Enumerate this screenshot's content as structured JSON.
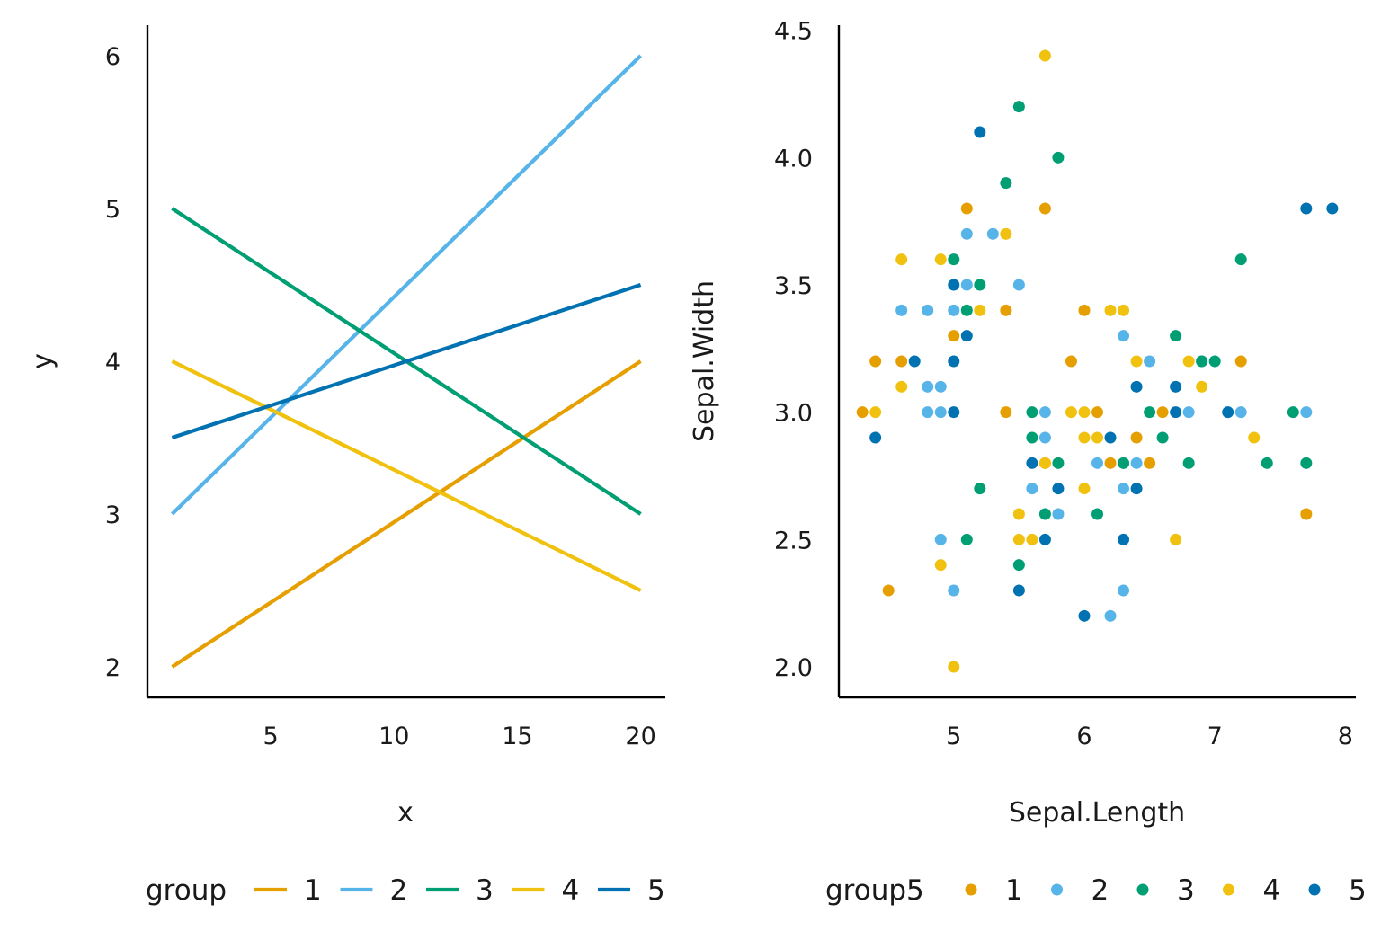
{
  "chart_data": [
    {
      "type": "line",
      "xlabel": "x",
      "ylabel": "y",
      "xlim": [
        0.0,
        21.0
      ],
      "ylim": [
        1.8,
        6.2
      ],
      "xticks": [
        5,
        10,
        15,
        20
      ],
      "yticks": [
        2,
        3,
        4,
        5,
        6
      ],
      "grid": false,
      "legend": {
        "title": "group",
        "position": "bottom",
        "entries": [
          "1",
          "2",
          "3",
          "4",
          "5"
        ]
      },
      "series": [
        {
          "name": "1",
          "color": "#E69F00",
          "x": [
            1,
            20
          ],
          "y": [
            2.0,
            4.0
          ]
        },
        {
          "name": "2",
          "color": "#56B4E9",
          "x": [
            1,
            20
          ],
          "y": [
            3.0,
            6.0
          ]
        },
        {
          "name": "3",
          "color": "#009E73",
          "x": [
            1,
            20
          ],
          "y": [
            5.0,
            3.0
          ]
        },
        {
          "name": "4",
          "color": "#F0C20F",
          "x": [
            1,
            20
          ],
          "y": [
            4.0,
            2.5
          ]
        },
        {
          "name": "5",
          "color": "#0072B2",
          "x": [
            1,
            20
          ],
          "y": [
            3.5,
            4.5
          ]
        }
      ]
    },
    {
      "type": "scatter",
      "xlabel": "Sepal.Length",
      "ylabel": "Sepal.Width",
      "xlim": [
        4.12,
        8.08
      ],
      "ylim": [
        1.88,
        4.52
      ],
      "xticks": [
        5,
        6,
        7,
        8
      ],
      "yticks": [
        "2.0",
        "2.5",
        "3.0",
        "3.5",
        "4.0",
        "4.5"
      ],
      "grid": false,
      "legend": {
        "title": "group5",
        "position": "bottom",
        "entries": [
          "1",
          "2",
          "3",
          "4",
          "5"
        ]
      },
      "series": [
        {
          "name": "1",
          "color": "#E69F00",
          "points": [
            [
              4.3,
              3.0
            ],
            [
              4.4,
              3.2
            ],
            [
              4.5,
              2.3
            ],
            [
              4.6,
              3.2
            ],
            [
              5.0,
              3.3
            ],
            [
              5.1,
              3.8
            ],
            [
              5.4,
              3.4
            ],
            [
              5.4,
              3.0
            ],
            [
              5.7,
              3.8
            ],
            [
              5.7,
              2.8
            ],
            [
              5.9,
              3.2
            ],
            [
              6.0,
              3.4
            ],
            [
              6.1,
              3.0
            ],
            [
              6.2,
              2.8
            ],
            [
              6.4,
              2.9
            ],
            [
              6.5,
              2.8
            ],
            [
              6.6,
              3.0
            ],
            [
              7.2,
              3.2
            ],
            [
              7.7,
              2.6
            ]
          ]
        },
        {
          "name": "2",
          "color": "#56B4E9",
          "points": [
            [
              4.6,
              3.4
            ],
            [
              4.8,
              3.4
            ],
            [
              4.8,
              3.0
            ],
            [
              4.8,
              3.1
            ],
            [
              4.9,
              3.1
            ],
            [
              4.9,
              3.0
            ],
            [
              4.9,
              2.5
            ],
            [
              5.0,
              3.4
            ],
            [
              5.0,
              2.3
            ],
            [
              5.1,
              3.7
            ],
            [
              5.1,
              3.5
            ],
            [
              5.3,
              3.7
            ],
            [
              5.5,
              3.5
            ],
            [
              5.6,
              2.7
            ],
            [
              5.7,
              3.0
            ],
            [
              5.7,
              2.9
            ],
            [
              5.8,
              2.6
            ],
            [
              6.1,
              2.8
            ],
            [
              6.2,
              2.2
            ],
            [
              6.3,
              3.3
            ],
            [
              6.3,
              2.8
            ],
            [
              6.3,
              2.7
            ],
            [
              6.3,
              2.3
            ],
            [
              6.4,
              2.8
            ],
            [
              6.5,
              3.2
            ],
            [
              6.8,
              3.0
            ],
            [
              6.9,
              3.2
            ],
            [
              7.2,
              3.0
            ],
            [
              7.7,
              3.0
            ]
          ]
        },
        {
          "name": "3",
          "color": "#009E73",
          "points": [
            [
              5.0,
              3.6
            ],
            [
              5.1,
              3.4
            ],
            [
              5.1,
              2.5
            ],
            [
              5.2,
              3.5
            ],
            [
              5.2,
              2.7
            ],
            [
              5.4,
              3.9
            ],
            [
              5.5,
              4.2
            ],
            [
              5.5,
              2.4
            ],
            [
              5.6,
              3.0
            ],
            [
              5.6,
              2.9
            ],
            [
              5.7,
              2.6
            ],
            [
              5.8,
              4.0
            ],
            [
              5.8,
              2.8
            ],
            [
              6.1,
              2.6
            ],
            [
              6.3,
              2.8
            ],
            [
              6.5,
              3.0
            ],
            [
              6.6,
              2.9
            ],
            [
              6.7,
              3.3
            ],
            [
              6.8,
              2.8
            ],
            [
              6.9,
              3.2
            ],
            [
              7.0,
              3.2
            ],
            [
              7.2,
              3.6
            ],
            [
              7.4,
              2.8
            ],
            [
              7.6,
              3.0
            ],
            [
              7.7,
              2.8
            ]
          ]
        },
        {
          "name": "4",
          "color": "#F0C20F",
          "points": [
            [
              4.4,
              3.0
            ],
            [
              4.6,
              3.6
            ],
            [
              4.6,
              3.1
            ],
            [
              4.9,
              3.6
            ],
            [
              4.9,
              2.4
            ],
            [
              5.0,
              2.0
            ],
            [
              5.2,
              3.4
            ],
            [
              5.4,
              3.7
            ],
            [
              5.5,
              2.6
            ],
            [
              5.5,
              2.5
            ],
            [
              5.6,
              2.5
            ],
            [
              5.7,
              4.4
            ],
            [
              5.7,
              2.8
            ],
            [
              5.9,
              3.0
            ],
            [
              6.0,
              3.0
            ],
            [
              6.0,
              2.9
            ],
            [
              6.0,
              2.7
            ],
            [
              6.1,
              2.9
            ],
            [
              6.2,
              3.4
            ],
            [
              6.3,
              3.4
            ],
            [
              6.4,
              3.2
            ],
            [
              6.7,
              2.5
            ],
            [
              6.8,
              3.2
            ],
            [
              6.9,
              3.1
            ],
            [
              7.3,
              2.9
            ]
          ]
        },
        {
          "name": "5",
          "color": "#0072B2",
          "points": [
            [
              4.4,
              2.9
            ],
            [
              4.7,
              3.2
            ],
            [
              5.0,
              3.5
            ],
            [
              5.0,
              3.2
            ],
            [
              5.0,
              3.0
            ],
            [
              5.1,
              3.3
            ],
            [
              5.2,
              4.1
            ],
            [
              5.5,
              2.3
            ],
            [
              5.6,
              2.8
            ],
            [
              5.7,
              2.5
            ],
            [
              5.8,
              2.7
            ],
            [
              6.0,
              2.2
            ],
            [
              6.2,
              2.9
            ],
            [
              6.3,
              2.5
            ],
            [
              6.4,
              3.1
            ],
            [
              6.4,
              2.7
            ],
            [
              6.7,
              3.1
            ],
            [
              6.7,
              3.0
            ],
            [
              7.1,
              3.0
            ],
            [
              7.7,
              3.8
            ],
            [
              7.9,
              3.8
            ]
          ]
        }
      ]
    }
  ]
}
